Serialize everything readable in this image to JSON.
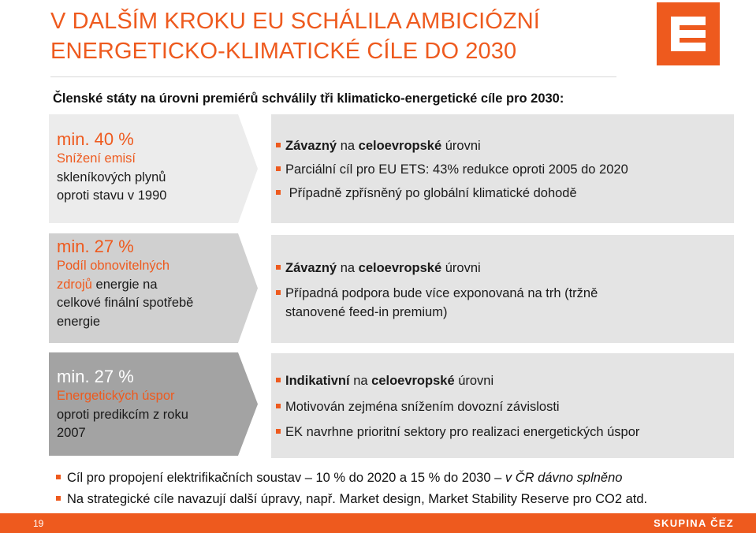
{
  "title": {
    "line1": "V DALŠÍM KROKU EU SCHÁLILA AMBICIÓZNÍ",
    "line2": "ENERGETICKO-KLIMATICKÉ CÍLE DO 2030"
  },
  "subtitle": "Členské státy na úrovni premiérů schválily tři klimaticko-energetické cíle pro 2030:",
  "goals": [
    {
      "value": "min. 40 %",
      "lines": [
        "Snížení emisí",
        "skleníkových plynů",
        "oproti stavu v 1990"
      ],
      "bullets": [
        [
          "Závazný",
          " na ",
          "celoevropské",
          " úrovni"
        ],
        [
          "Parciální cíl pro EU ETS: 43% redukce oproti 2005 do 2020"
        ],
        [
          " Případně zpřísněný po globální klimatické dohodě"
        ]
      ]
    },
    {
      "value": "min. 27 %",
      "lines": [
        "Podíl obnovitelných",
        "zdrojů",
        " energie na",
        "celkové finální spotřebě",
        "energie"
      ],
      "bullets": [
        [
          "Závazný",
          " na ",
          "celoevropské",
          " úrovni"
        ],
        [
          "Případná podpora bude více exponovaná na trh (tržně",
          "stanovené feed-in premium)"
        ]
      ]
    },
    {
      "value": "min. 27 %",
      "lines": [
        "Energetických úspor",
        "oproti predikcím z roku",
        "2007"
      ],
      "bullets": [
        [
          "Indikativní",
          " na ",
          "celoevropské",
          " úrovni"
        ],
        [
          "Motivován zejména snížením dovozní závislosti"
        ],
        [
          "EK navrhne prioritní sektory pro realizaci energetických úspor"
        ]
      ]
    }
  ],
  "notes": [
    {
      "text": "Cíl pro propojení elektrifikačních soustav – 10 % do 2020 a 15 % do 2030 – ",
      "italic": "v ČR dávno splněno"
    },
    {
      "text": "Na strategické cíle navazují další úpravy, např. Market design, Market Stability Reserve pro CO2 atd.",
      "italic": ""
    }
  ],
  "footer": {
    "page_number": "19",
    "brand": "SKUPINA ČEZ"
  },
  "colors": {
    "accent": "#ee5a1e",
    "box1": "#ececec",
    "box2": "#d0d0d0",
    "box3": "#a3a3a3",
    "right_box": "#e4e4e4"
  },
  "icons": {
    "logo": "cez-logo-icon",
    "bullet": "square-bullet-icon"
  }
}
